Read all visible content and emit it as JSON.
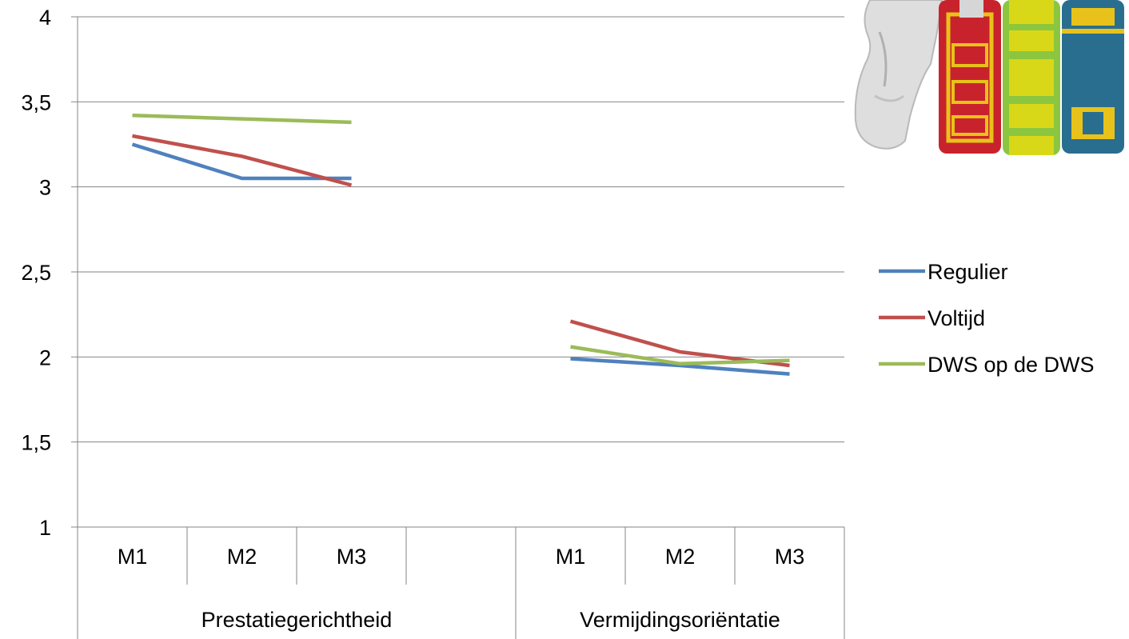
{
  "chart_data": {
    "type": "line",
    "title": "",
    "xlabel": "",
    "ylabel": "",
    "ylim": [
      1,
      4
    ],
    "yticks": [
      "1",
      "1,5",
      "2",
      "2,5",
      "3",
      "3,5",
      "4"
    ],
    "grid": true,
    "legend_position": "right",
    "groups": [
      {
        "name": "Prestatiegerichtheid",
        "categories": [
          "M1",
          "M2",
          "M3",
          ""
        ]
      },
      {
        "name": "Vermijdingsoriëntatie",
        "categories": [
          "M1",
          "M2",
          "M3"
        ]
      }
    ],
    "series": [
      {
        "name": "Regulier",
        "color": "#4F81BD",
        "values": [
          3.25,
          3.05,
          3.05,
          null,
          1.99,
          1.95,
          1.9
        ]
      },
      {
        "name": "Voltijd",
        "color": "#C0504D",
        "values": [
          3.3,
          3.18,
          3.01,
          null,
          2.21,
          2.03,
          1.95
        ]
      },
      {
        "name": "DWS op de DWS",
        "color": "#9BBB59",
        "values": [
          3.42,
          3.4,
          3.38,
          null,
          2.06,
          1.96,
          1.98
        ]
      }
    ]
  },
  "decoration": {
    "image": "3d-figure-leaning-on-books"
  }
}
